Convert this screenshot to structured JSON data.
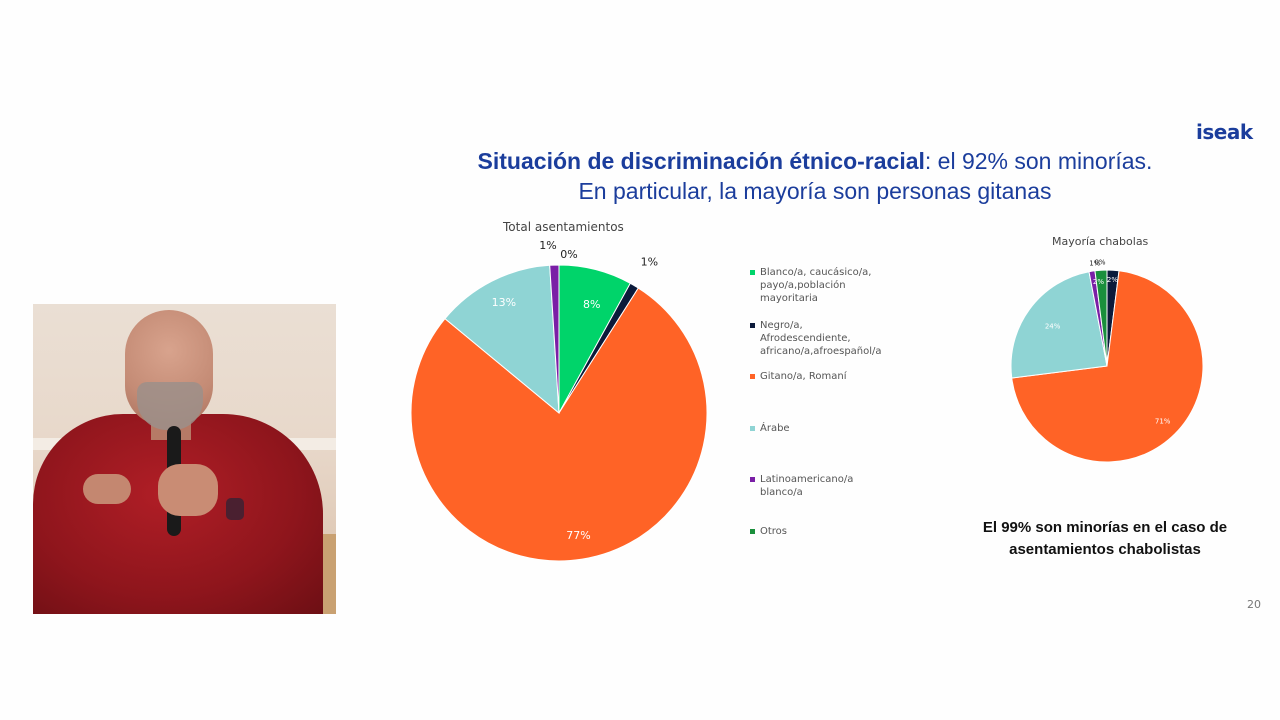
{
  "logo": "iseak",
  "title": {
    "bold": "Situación de discriminación étnico-racial",
    "rest": ": el 92% son minorías.",
    "line2": "En particular, la mayoría son personas gitanas"
  },
  "colors": {
    "blanco": "#00d46a",
    "negro": "#0b1a3a",
    "gitano": "#ff6326",
    "arabe": "#8fd4d4",
    "latino": "#7a1fa6",
    "otros": "#1a8f3c",
    "title": "#1b3d9c"
  },
  "legend": [
    {
      "label": "Blanco/a, caucásico/a,\npayo/a,población\nmayoritaria",
      "color": "#00d46a"
    },
    {
      "label": "Negro/a,\nAfrodescendiente,\nafricano/a,afroespañol/a",
      "color": "#0b1a3a"
    },
    {
      "label": "Gitano/a, Romaní",
      "color": "#ff6326"
    },
    {
      "label": "Árabe",
      "color": "#8fd4d4"
    },
    {
      "label": "Latinoamericano/a\nblanco/a",
      "color": "#7a1fa6"
    },
    {
      "label": "Otros",
      "color": "#1a8f3c"
    }
  ],
  "note": "El 99% son minorías en el caso de asentamientos chabolistas",
  "page_number": "20",
  "chart_data": [
    {
      "type": "pie",
      "title": "Total asentamientos",
      "categories": [
        "Blanco/a, caucásico/a, payo/a,población mayoritaria",
        "Negro/a, Afrodescendiente, africano/a,afroespañol/a",
        "Gitano/a, Romaní",
        "Árabe",
        "Latinoamericano/a blanco/a",
        "Otros"
      ],
      "values": [
        8,
        1,
        77,
        13,
        1,
        0
      ],
      "labels": [
        "8%",
        "1%",
        "77%",
        "13%",
        "1%",
        "0%"
      ],
      "colors": [
        "#00d46a",
        "#0b1a3a",
        "#ff6326",
        "#8fd4d4",
        "#7a1fa6",
        "#1a8f3c"
      ]
    },
    {
      "type": "pie",
      "title": "Mayoría chabolas",
      "categories": [
        "Blanco/a, caucásico/a, payo/a,población mayoritaria",
        "Negro/a, Afrodescendiente, africano/a,afroespañol/a",
        "Gitano/a, Romaní",
        "Árabe",
        "Latinoamericano/a blanco/a",
        "Otros"
      ],
      "values": [
        0,
        2,
        71,
        24,
        1,
        2
      ],
      "labels": [
        "0%",
        "2%",
        "71%",
        "24%",
        "1%",
        "2%"
      ],
      "colors": [
        "#00d46a",
        "#0b1a3a",
        "#ff6326",
        "#8fd4d4",
        "#7a1fa6",
        "#1a8f3c"
      ]
    }
  ]
}
